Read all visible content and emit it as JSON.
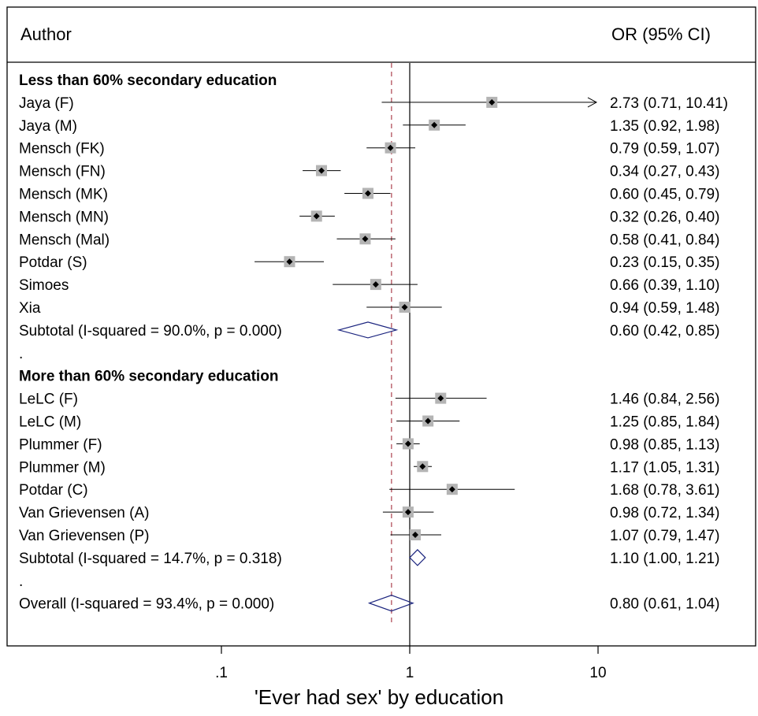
{
  "header": {
    "left": "Author",
    "right": "OR (95% CI)"
  },
  "chart_data": {
    "type": "forest",
    "xlabel": "'Ever had sex' by education",
    "x_scale": "log",
    "xlim": [
      0.02,
      50
    ],
    "x_ticks": [
      {
        "value": 0.1,
        "label": ".1"
      },
      {
        "value": 1,
        "label": "1"
      },
      {
        "value": 10,
        "label": "10"
      }
    ],
    "null_line": 1,
    "overall_line": 0.8,
    "rows": [
      {
        "kind": "group",
        "label": "Less than 60% secondary education"
      },
      {
        "kind": "study",
        "label": "Jaya (F)",
        "or": 2.73,
        "lo": 0.71,
        "hi": 10.41,
        "text": "2.73 (0.71, 10.41)",
        "arrow": true
      },
      {
        "kind": "study",
        "label": "Jaya (M)",
        "or": 1.35,
        "lo": 0.92,
        "hi": 1.98,
        "text": "1.35 (0.92, 1.98)"
      },
      {
        "kind": "study",
        "label": "Mensch (FK)",
        "or": 0.79,
        "lo": 0.59,
        "hi": 1.07,
        "text": "0.79 (0.59, 1.07)"
      },
      {
        "kind": "study",
        "label": "Mensch (FN)",
        "or": 0.34,
        "lo": 0.27,
        "hi": 0.43,
        "text": "0.34 (0.27, 0.43)"
      },
      {
        "kind": "study",
        "label": "Mensch (MK)",
        "or": 0.6,
        "lo": 0.45,
        "hi": 0.79,
        "text": "0.60 (0.45, 0.79)"
      },
      {
        "kind": "study",
        "label": "Mensch (MN)",
        "or": 0.32,
        "lo": 0.26,
        "hi": 0.4,
        "text": "0.32 (0.26, 0.40)"
      },
      {
        "kind": "study",
        "label": "Mensch (Mal)",
        "or": 0.58,
        "lo": 0.41,
        "hi": 0.84,
        "text": "0.58 (0.41, 0.84)"
      },
      {
        "kind": "study",
        "label": "Potdar (S)",
        "or": 0.23,
        "lo": 0.15,
        "hi": 0.35,
        "text": "0.23 (0.15, 0.35)"
      },
      {
        "kind": "study",
        "label": "Simoes",
        "or": 0.66,
        "lo": 0.39,
        "hi": 1.1,
        "text": "0.66 (0.39, 1.10)"
      },
      {
        "kind": "study",
        "label": "Xia",
        "or": 0.94,
        "lo": 0.59,
        "hi": 1.48,
        "text": "0.94 (0.59, 1.48)"
      },
      {
        "kind": "subtotal",
        "label": "Subtotal  (I-squared = 90.0%, p = 0.000)",
        "or": 0.6,
        "lo": 0.42,
        "hi": 0.85,
        "text": "0.60 (0.42, 0.85)"
      },
      {
        "kind": "spacer",
        "label": "."
      },
      {
        "kind": "group",
        "label": "More than 60% secondary education"
      },
      {
        "kind": "study",
        "label": "LeLC (F)",
        "or": 1.46,
        "lo": 0.84,
        "hi": 2.56,
        "text": "1.46 (0.84, 2.56)"
      },
      {
        "kind": "study",
        "label": "LeLC (M)",
        "or": 1.25,
        "lo": 0.85,
        "hi": 1.84,
        "text": "1.25 (0.85, 1.84)"
      },
      {
        "kind": "study",
        "label": "Plummer (F)",
        "or": 0.98,
        "lo": 0.85,
        "hi": 1.13,
        "text": "0.98 (0.85, 1.13)"
      },
      {
        "kind": "study",
        "label": "Plummer (M)",
        "or": 1.17,
        "lo": 1.05,
        "hi": 1.31,
        "text": "1.17 (1.05, 1.31)"
      },
      {
        "kind": "study",
        "label": "Potdar (C)",
        "or": 1.68,
        "lo": 0.78,
        "hi": 3.61,
        "text": "1.68 (0.78, 3.61)"
      },
      {
        "kind": "study",
        "label": "Van Grievensen (A)",
        "or": 0.98,
        "lo": 0.72,
        "hi": 1.34,
        "text": "0.98 (0.72, 1.34)"
      },
      {
        "kind": "study",
        "label": "Van Grievensen (P)",
        "or": 1.07,
        "lo": 0.79,
        "hi": 1.47,
        "text": "1.07 (0.79, 1.47)"
      },
      {
        "kind": "subtotal",
        "label": "Subtotal  (I-squared = 14.7%, p = 0.318)",
        "or": 1.1,
        "lo": 1.0,
        "hi": 1.21,
        "text": "1.10 (1.00, 1.21)"
      },
      {
        "kind": "spacer",
        "label": "."
      },
      {
        "kind": "subtotal",
        "label": "Overall  (I-squared = 93.4%, p = 0.000)",
        "or": 0.8,
        "lo": 0.61,
        "hi": 1.04,
        "text": "0.80 (0.61, 1.04)"
      }
    ]
  },
  "colors": {
    "frame": "#000000",
    "ci_line": "#000000",
    "weight_box": "#b4b4b4",
    "point": "#000000",
    "diamond": "#1a237e",
    "overall_line": "#c0707a"
  }
}
